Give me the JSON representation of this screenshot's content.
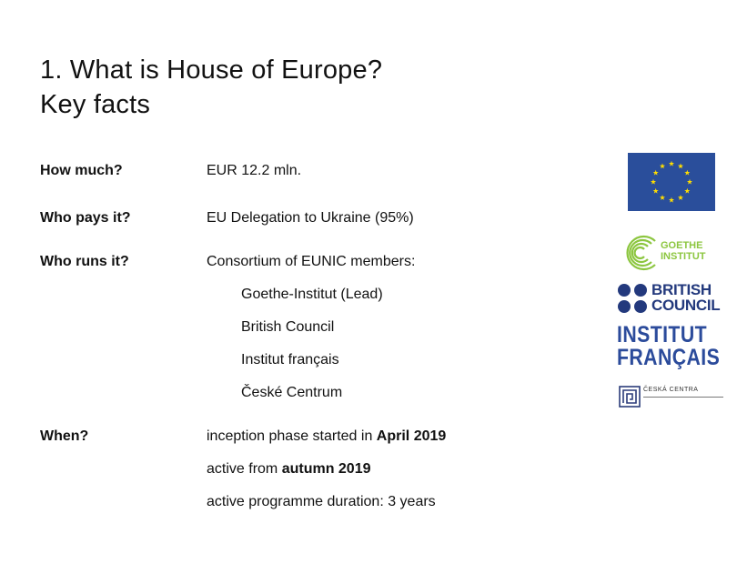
{
  "title": {
    "line1": "1. What is House of Europe?",
    "line2": "Key facts"
  },
  "facts": {
    "how_much": {
      "label": "How much?",
      "value": "EUR 12.2 mln."
    },
    "who_pays": {
      "label": "Who pays it?",
      "value": "EU Delegation to Ukraine (95%)"
    },
    "who_runs": {
      "label": "Who runs it?",
      "value": "Consortium of EUNIC members:",
      "members": [
        "Goethe-Institut (Lead)",
        "British Council",
        "Institut français",
        "České Centrum"
      ]
    },
    "when": {
      "label": "When?",
      "line1_pre": "inception phase started in ",
      "line1_bold": "April 2019",
      "line2_pre": "active from ",
      "line2_bold": "autumn 2019",
      "line3": "active programme duration: 3 years"
    }
  },
  "logos": {
    "eu_flag": {
      "icon": "eu-flag-icon",
      "background": "#2a4e9b",
      "star_color": "#ffdd00"
    },
    "goethe": {
      "line1": "GOETHE",
      "line2": "INSTITUT",
      "color": "#8cc63f"
    },
    "british_council": {
      "line1": "BRITISH",
      "line2": "COUNCIL",
      "color": "#23397d"
    },
    "institut_francais": {
      "line1": "INSTITUT",
      "line2": "FRANÇAIS",
      "color": "#2b4b9b"
    },
    "ceska_centra": {
      "text": "ČESKÁ CENTRA"
    }
  }
}
